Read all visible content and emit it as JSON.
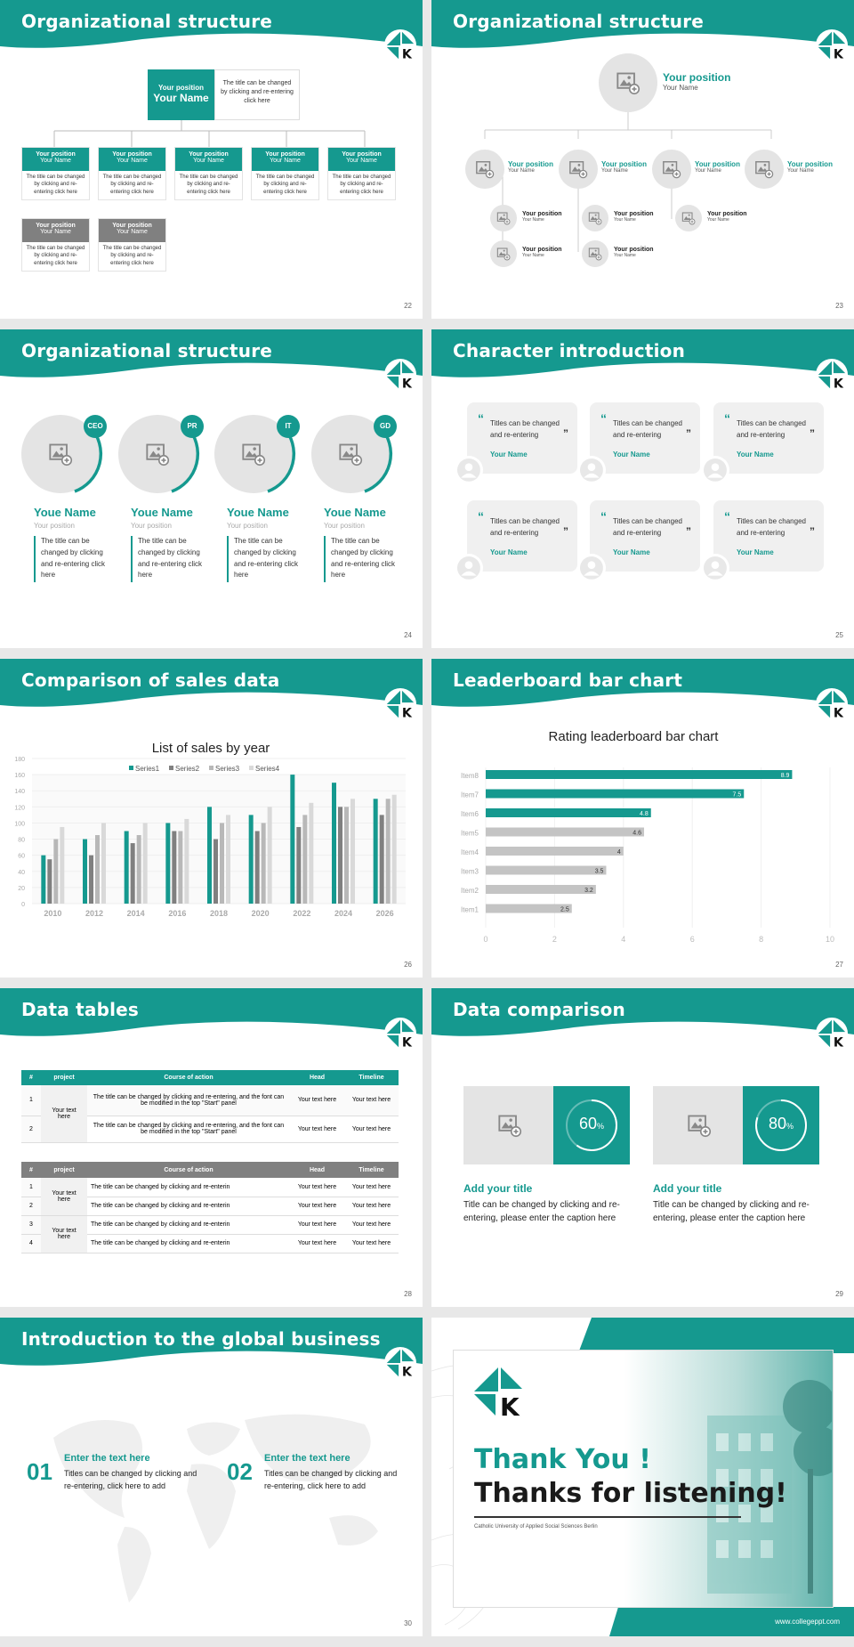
{
  "colors": {
    "accent": "#15998f",
    "gray": "#888888",
    "lightgray": "#e4e4e4"
  },
  "s22": {
    "title": "Organizational structure",
    "page": "22",
    "top_label": "Your position",
    "top_name": "Your Name",
    "top_desc": "The title can be changed by clicking and re-entering click here",
    "row1": [
      {
        "pos": "Your position",
        "name": "Your Name",
        "desc": "The title can be changed by clicking and re-entering click here"
      },
      {
        "pos": "Your position",
        "name": "Your Name",
        "desc": "The title can be changed by clicking and re-entering click here"
      },
      {
        "pos": "Your position",
        "name": "Your Name",
        "desc": "The title can be changed by clicking and re-entering click here"
      },
      {
        "pos": "Your position",
        "name": "Your Name",
        "desc": "The title can be changed by clicking and re-entering click here"
      },
      {
        "pos": "Your position",
        "name": "Your Name",
        "desc": "The title can be changed by clicking and re-entering click here"
      }
    ],
    "row2": [
      {
        "pos": "Your position",
        "name": "Your Name",
        "desc": "The title can be changed by clicking and re-entering click here"
      },
      {
        "pos": "Your position",
        "name": "Your Name",
        "desc": "The title can be changed by clicking and re-entering click here"
      }
    ]
  },
  "s23": {
    "title": "Organizational structure",
    "page": "23",
    "top": {
      "pos": "Your position",
      "name": "Your Name"
    },
    "mid": [
      {
        "pos": "Your position",
        "name": "Your Name"
      },
      {
        "pos": "Your position",
        "name": "Your Name"
      },
      {
        "pos": "Your position",
        "name": "Your Name"
      },
      {
        "pos": "Your position",
        "name": "Your Name"
      }
    ],
    "low": [
      {
        "pos": "Your position",
        "name": "Your Name"
      },
      {
        "pos": "Your position",
        "name": "Your Name"
      },
      {
        "pos": "Your position",
        "name": "Your Name"
      },
      {
        "pos": "Your position",
        "name": "Your Name"
      },
      {
        "pos": "Your position",
        "name": "Your Name"
      }
    ]
  },
  "s24": {
    "title": "Organizational structure",
    "page": "24",
    "items": [
      {
        "badge": "CEO",
        "name": "Youe Name",
        "pos": "Your position",
        "desc": "The title can be changed by clicking and re-entering click here"
      },
      {
        "badge": "PR",
        "name": "Youe Name",
        "pos": "Your position",
        "desc": "The title can be changed by clicking and re-entering click here"
      },
      {
        "badge": "IT",
        "name": "Youe Name",
        "pos": "Your position",
        "desc": "The title can be changed by clicking and re-entering click here"
      },
      {
        "badge": "GD",
        "name": "Youe Name",
        "pos": "Your position",
        "desc": "The title can be changed by clicking and re-entering click here"
      }
    ]
  },
  "s25": {
    "title": "Character introduction",
    "page": "25",
    "cards": [
      {
        "text": "Titles can be changed and re-entering",
        "name": "Your Name"
      },
      {
        "text": "Titles can be changed and re-entering",
        "name": "Your Name"
      },
      {
        "text": "Titles can be changed and re-entering",
        "name": "Your Name"
      },
      {
        "text": "Titles can be changed and re-entering",
        "name": "Your Name"
      },
      {
        "text": "Titles can be changed and re-entering",
        "name": "Your Name"
      },
      {
        "text": "Titles can be changed and re-entering",
        "name": "Your Name"
      }
    ]
  },
  "s26": {
    "title": "Comparison of sales data",
    "page": "26"
  },
  "s27": {
    "title": "Leaderboard bar chart",
    "page": "27"
  },
  "chart_data": [
    {
      "type": "bar",
      "title": "List of sales by year",
      "categories": [
        "2010",
        "2012",
        "2014",
        "2016",
        "2018",
        "2020",
        "2022",
        "2024",
        "2026"
      ],
      "series": [
        {
          "name": "Series1",
          "color": "#15998f",
          "values": [
            60,
            80,
            90,
            100,
            120,
            110,
            160,
            150,
            130
          ]
        },
        {
          "name": "Series2",
          "color": "#808080",
          "values": [
            55,
            60,
            75,
            90,
            80,
            90,
            95,
            120,
            110
          ]
        },
        {
          "name": "Series3",
          "color": "#b8b8b8",
          "values": [
            80,
            85,
            85,
            90,
            100,
            100,
            110,
            120,
            130
          ]
        },
        {
          "name": "Series4",
          "color": "#d9d9d9",
          "values": [
            95,
            100,
            100,
            105,
            110,
            120,
            125,
            130,
            135
          ]
        }
      ],
      "yticks": [
        "0",
        "20",
        "40",
        "60",
        "80",
        "100",
        "120",
        "140",
        "160",
        "180"
      ],
      "ylim": [
        0,
        180
      ],
      "legend": "top"
    },
    {
      "type": "bar",
      "orientation": "horizontal",
      "title": "Rating leaderboard bar chart",
      "categories": [
        "Item8",
        "Item7",
        "Item6",
        "Item5",
        "Item4",
        "Item3",
        "Item2",
        "Item1"
      ],
      "values": [
        8.9,
        7.5,
        4.8,
        4.6,
        4,
        3.5,
        3.2,
        2.5
      ],
      "labels": [
        "8.9",
        "7.5",
        "4.8",
        "4.6",
        "4",
        "3.5",
        "3.2",
        "2.5"
      ],
      "highlight_count": 3,
      "xticks": [
        "0",
        "2",
        "4",
        "6",
        "8",
        "10"
      ],
      "xlim": [
        0,
        10
      ]
    }
  ],
  "s28": {
    "title": "Data tables",
    "page": "28",
    "t1_headers": [
      "#",
      "project",
      "Course of action",
      "Head",
      "Timeline"
    ],
    "t1_merged": "Your text here",
    "t1_rows": [
      {
        "n": "1",
        "action": "The title can be changed by clicking and re-entering, and the font can be modified in the top \"Start\" panel",
        "head": "Your text here",
        "time": "Your text here"
      },
      {
        "n": "2",
        "action": "The title can be changed by clicking and re-entering, and the font can be modified in the top \"Start\" panel",
        "head": "Your text here",
        "time": "Your text here"
      }
    ],
    "t2_headers": [
      "#",
      "project",
      "Course of action",
      "Head",
      "Timeline"
    ],
    "t2_merged1": "Your text here",
    "t2_merged2": "Your text here",
    "t2_rows": [
      {
        "n": "1",
        "action": "The title can be changed by clicking and re-enterin",
        "head": "Your text here",
        "time": "Your text here"
      },
      {
        "n": "2",
        "action": "The title can be changed by clicking and re-enterin",
        "head": "Your text here",
        "time": "Your text here"
      },
      {
        "n": "3",
        "action": "The title can be changed by clicking and re-enterin",
        "head": "Your text here",
        "time": "Your text here"
      },
      {
        "n": "4",
        "action": "The title can be changed by clicking and re-enterin",
        "head": "Your text here",
        "time": "Your text here"
      }
    ]
  },
  "s29": {
    "title": "Data comparison",
    "page": "29",
    "items": [
      {
        "percent": 60,
        "num": "60",
        "unit": "%",
        "head": "Add your title",
        "text": "Title can be changed by clicking and re-entering, please enter the caption here"
      },
      {
        "percent": 80,
        "num": "80",
        "unit": "%",
        "head": "Add your title",
        "text": "Title can be changed by clicking and re-entering, please enter the caption here"
      }
    ]
  },
  "s30": {
    "title": "Introduction to the global business",
    "page": "30",
    "items": [
      {
        "num": "01",
        "head": "Enter the text here",
        "text": "Titles can be changed by clicking and re-entering, click here to add"
      },
      {
        "num": "02",
        "head": "Enter the text here",
        "text": "Titles can be changed by clicking and re-entering, click here to add"
      }
    ]
  },
  "s31": {
    "thanks": "Thank You !",
    "listening": "Thanks for listening!",
    "university": "Catholic University of Applied Social Sciences Berlin",
    "website": "www.collegeppt.com"
  }
}
